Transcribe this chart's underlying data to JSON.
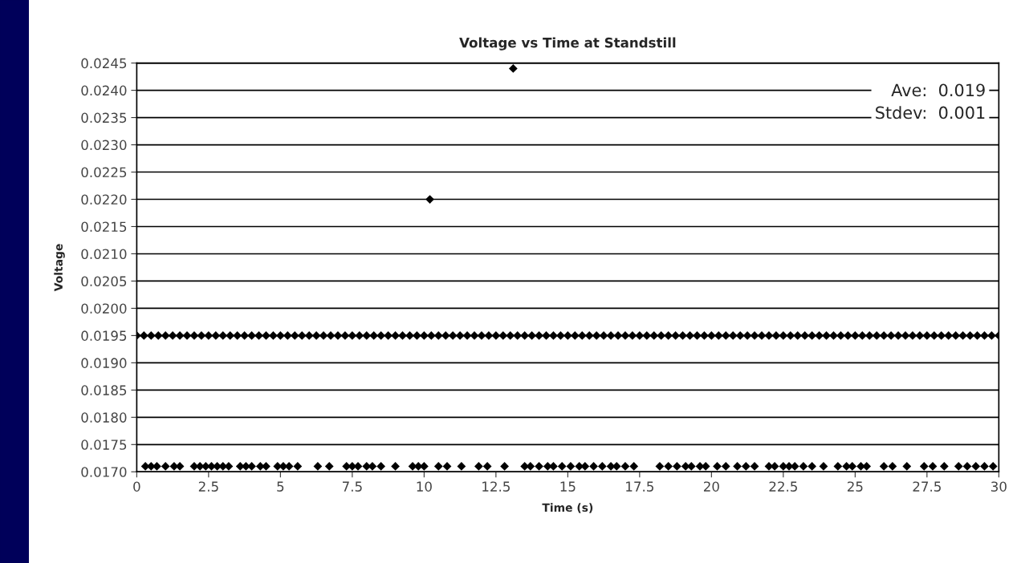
{
  "chart_data": {
    "type": "scatter",
    "title": "Voltage vs Time at Standstill",
    "xlabel": "Time (s)",
    "ylabel": "Voltage",
    "marker": "diamond",
    "grid": "y",
    "legend": false,
    "xlim": [
      0,
      30
    ],
    "xticks": [
      0,
      {
        "value": 2.5,
        "label": "2.5"
      },
      5,
      {
        "value": 7.5,
        "label": "7.5"
      },
      10,
      {
        "value": 12.5,
        "label": "12.5"
      },
      15,
      {
        "value": 17.5,
        "label": "17.5"
      },
      20,
      {
        "value": 22.5,
        "label": "22.5"
      },
      25,
      {
        "value": 27.5,
        "label": "27.5"
      },
      30
    ],
    "ylim": [
      0.017,
      0.0245
    ],
    "yticks": [
      {
        "value": 0.017,
        "label": "0.0170"
      },
      {
        "value": 0.0175,
        "label": "0.0175"
      },
      {
        "value": 0.018,
        "label": "0.0180"
      },
      {
        "value": 0.0185,
        "label": "0.0185"
      },
      {
        "value": 0.019,
        "label": "0.0190"
      },
      {
        "value": 0.0195,
        "label": "0.0195"
      },
      {
        "value": 0.02,
        "label": "0.0200"
      },
      {
        "value": 0.0205,
        "label": "0.0205"
      },
      {
        "value": 0.021,
        "label": "0.0210"
      },
      {
        "value": 0.0215,
        "label": "0.0215"
      },
      {
        "value": 0.022,
        "label": "0.0220"
      },
      {
        "value": 0.0225,
        "label": "0.0225"
      },
      {
        "value": 0.023,
        "label": "0.0230"
      },
      {
        "value": 0.0235,
        "label": "0.0235"
      },
      {
        "value": 0.024,
        "label": "0.0240"
      },
      {
        "value": 0.0245,
        "label": "0.0245"
      }
    ],
    "annotations": [
      "Ave:  0.019",
      "Stdev:  0.001"
    ],
    "series": [
      {
        "color": "#000000",
        "x": [
          0,
          0.25,
          0.5,
          0.75,
          1,
          1.25,
          1.5,
          1.75,
          2,
          2.25,
          2.5,
          2.75,
          3,
          3.25,
          3.5,
          3.75,
          4,
          4.25,
          4.5,
          4.75,
          5,
          5.25,
          5.5,
          5.75,
          6,
          6.25,
          6.5,
          6.75,
          7,
          7.25,
          7.5,
          7.75,
          8,
          8.25,
          8.5,
          8.75,
          9,
          9.25,
          9.5,
          9.75,
          10,
          10.25,
          10.5,
          10.75,
          11,
          11.25,
          11.5,
          11.75,
          12,
          12.25,
          12.5,
          12.75,
          13,
          13.25,
          13.5,
          13.75,
          14,
          14.25,
          14.5,
          14.75,
          15,
          15.25,
          15.5,
          15.75,
          16,
          16.25,
          16.5,
          16.75,
          17,
          17.25,
          17.5,
          17.75,
          18,
          18.25,
          18.5,
          18.75,
          19,
          19.25,
          19.5,
          19.75,
          20,
          20.25,
          20.5,
          20.75,
          21,
          21.25,
          21.5,
          21.75,
          22,
          22.25,
          22.5,
          22.75,
          23,
          23.25,
          23.5,
          23.75,
          24,
          24.25,
          24.5,
          24.75,
          25,
          25.25,
          25.5,
          25.75,
          26,
          26.25,
          26.5,
          26.75,
          27,
          27.25,
          27.5,
          27.75,
          28,
          28.25,
          28.5,
          28.75,
          29,
          29.25,
          29.5,
          29.75,
          30
        ],
        "values": [
          0.0195,
          0.0195,
          0.0195,
          0.0195,
          0.0195,
          0.0195,
          0.0195,
          0.0195,
          0.0195,
          0.0195,
          0.0195,
          0.0195,
          0.0195,
          0.0195,
          0.0195,
          0.0195,
          0.0195,
          0.0195,
          0.0195,
          0.0195,
          0.0195,
          0.0195,
          0.0195,
          0.0195,
          0.0195,
          0.0195,
          0.0195,
          0.0195,
          0.0195,
          0.0195,
          0.0195,
          0.0195,
          0.0195,
          0.0195,
          0.0195,
          0.0195,
          0.0195,
          0.0195,
          0.0195,
          0.0195,
          0.0195,
          0.0195,
          0.0195,
          0.0195,
          0.0195,
          0.0195,
          0.0195,
          0.0195,
          0.0195,
          0.0195,
          0.0195,
          0.0195,
          0.0195,
          0.0195,
          0.0195,
          0.0195,
          0.0195,
          0.0195,
          0.0195,
          0.0195,
          0.0195,
          0.0195,
          0.0195,
          0.0195,
          0.0195,
          0.0195,
          0.0195,
          0.0195,
          0.0195,
          0.0195,
          0.0195,
          0.0195,
          0.0195,
          0.0195,
          0.0195,
          0.0195,
          0.0195,
          0.0195,
          0.0195,
          0.0195,
          0.0195,
          0.0195,
          0.0195,
          0.0195,
          0.0195,
          0.0195,
          0.0195,
          0.0195,
          0.0195,
          0.0195,
          0.0195,
          0.0195,
          0.0195,
          0.0195,
          0.0195,
          0.0195,
          0.0195,
          0.0195,
          0.0195,
          0.0195,
          0.0195,
          0.0195,
          0.0195,
          0.0195,
          0.0195,
          0.0195,
          0.0195,
          0.0195,
          0.0195,
          0.0195,
          0.0195,
          0.0195,
          0.0195,
          0.0195,
          0.0195,
          0.0195,
          0.0195,
          0.0195,
          0.0195,
          0.0195,
          0.0195
        ]
      },
      {
        "color": "#000000",
        "x": [
          0.3,
          0.5,
          0.7,
          1.0,
          1.3,
          1.5,
          2.0,
          2.2,
          2.4,
          2.6,
          2.8,
          3.0,
          3.2,
          3.6,
          3.8,
          4.0,
          4.3,
          4.5,
          4.9,
          5.1,
          5.3,
          5.6,
          6.3,
          6.7,
          7.3,
          7.5,
          7.7,
          8.0,
          8.2,
          8.5,
          9.0,
          9.6,
          9.8,
          10.0,
          10.5,
          10.8,
          11.3,
          11.9,
          12.2,
          12.8,
          13.5,
          13.7,
          14.0,
          14.3,
          14.5,
          14.8,
          15.1,
          15.4,
          15.6,
          15.9,
          16.2,
          16.5,
          16.7,
          17.0,
          17.3,
          18.2,
          18.5,
          18.8,
          19.1,
          19.3,
          19.6,
          19.8,
          20.2,
          20.5,
          20.9,
          21.2,
          21.5,
          22.0,
          22.2,
          22.5,
          22.7,
          22.9,
          23.2,
          23.5,
          23.9,
          24.4,
          24.7,
          24.9,
          25.2,
          25.4,
          26.0,
          26.3,
          26.8,
          27.4,
          27.7,
          28.1,
          28.6,
          28.9,
          29.2,
          29.5,
          29.8
        ],
        "values": [
          0.0171,
          0.0171,
          0.0171,
          0.0171,
          0.0171,
          0.0171,
          0.0171,
          0.0171,
          0.0171,
          0.0171,
          0.0171,
          0.0171,
          0.0171,
          0.0171,
          0.0171,
          0.0171,
          0.0171,
          0.0171,
          0.0171,
          0.0171,
          0.0171,
          0.0171,
          0.0171,
          0.0171,
          0.0171,
          0.0171,
          0.0171,
          0.0171,
          0.0171,
          0.0171,
          0.0171,
          0.0171,
          0.0171,
          0.0171,
          0.0171,
          0.0171,
          0.0171,
          0.0171,
          0.0171,
          0.0171,
          0.0171,
          0.0171,
          0.0171,
          0.0171,
          0.0171,
          0.0171,
          0.0171,
          0.0171,
          0.0171,
          0.0171,
          0.0171,
          0.0171,
          0.0171,
          0.0171,
          0.0171,
          0.0171,
          0.0171,
          0.0171,
          0.0171,
          0.0171,
          0.0171,
          0.0171,
          0.0171,
          0.0171,
          0.0171,
          0.0171,
          0.0171,
          0.0171,
          0.0171,
          0.0171,
          0.0171,
          0.0171,
          0.0171,
          0.0171,
          0.0171,
          0.0171,
          0.0171,
          0.0171,
          0.0171,
          0.0171,
          0.0171,
          0.0171,
          0.0171,
          0.0171,
          0.0171,
          0.0171,
          0.0171,
          0.0171,
          0.0171,
          0.0171,
          0.0171
        ]
      },
      {
        "color": "#000000",
        "x": [
          10.2,
          13.1
        ],
        "values": [
          0.022,
          0.0244
        ]
      }
    ]
  }
}
